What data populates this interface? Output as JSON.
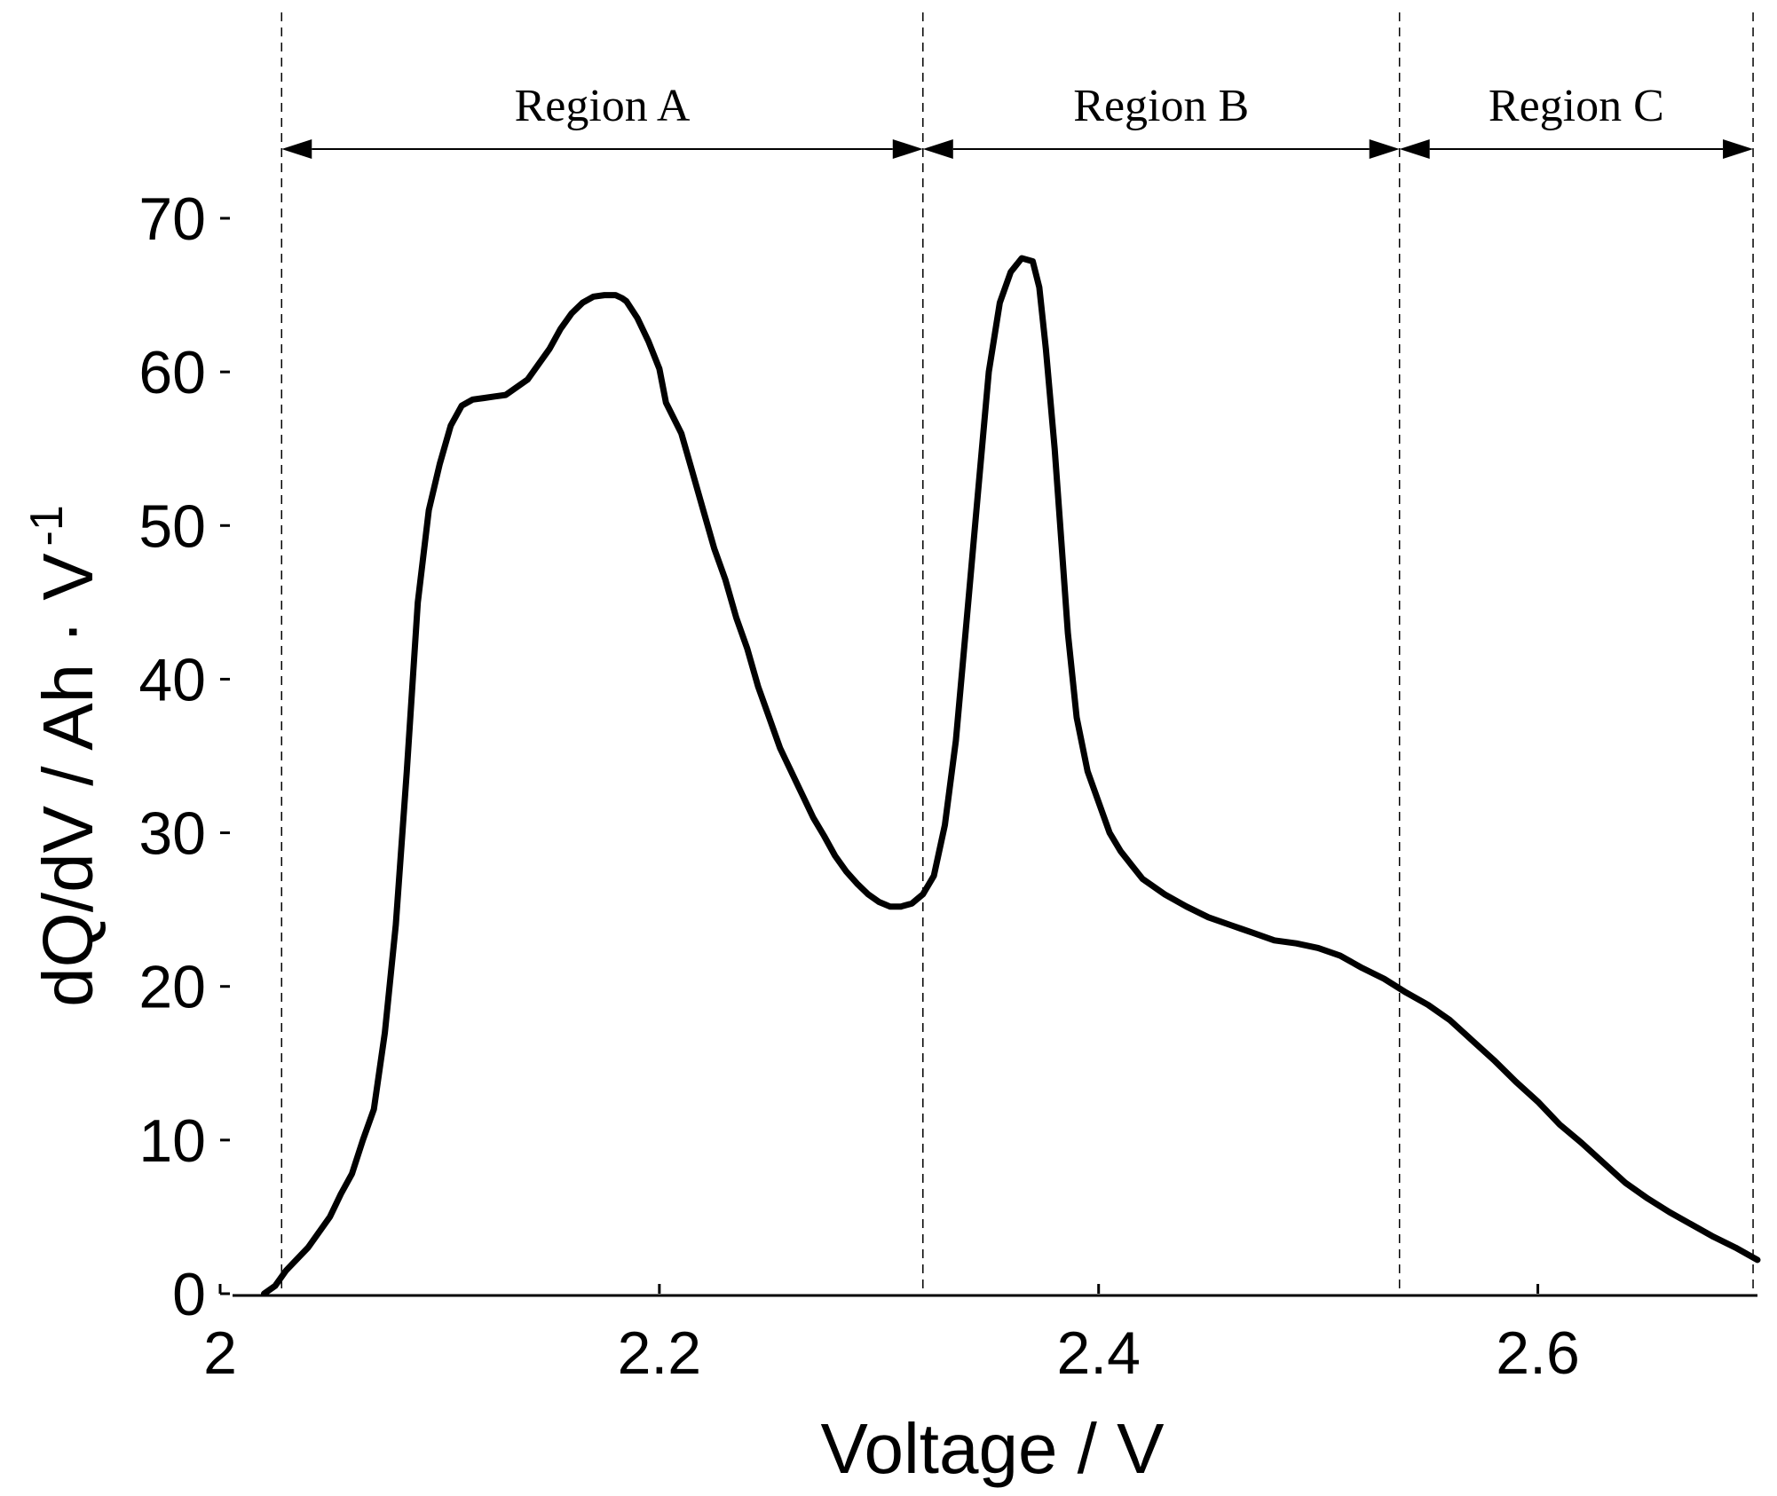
{
  "chart_data": {
    "type": "line",
    "title": "",
    "xlabel": "Voltage / V",
    "ylabel": "dQ/dV / Ah · V",
    "ylabel_superscript": "-1",
    "xlim": [
      2.0,
      2.7
    ],
    "ylim": [
      0,
      70
    ],
    "xticks": [
      {
        "value": 2.0,
        "label": "2"
      },
      {
        "value": 2.2,
        "label": "2.2"
      },
      {
        "value": 2.4,
        "label": "2.4"
      },
      {
        "value": 2.6,
        "label": "2.6"
      }
    ],
    "yticks": [
      {
        "value": 0,
        "label": "0"
      },
      {
        "value": 10,
        "label": "10"
      },
      {
        "value": 20,
        "label": "20"
      },
      {
        "value": 30,
        "label": "30"
      },
      {
        "value": 40,
        "label": "40"
      },
      {
        "value": 50,
        "label": "50"
      },
      {
        "value": 60,
        "label": "60"
      },
      {
        "value": 70,
        "label": "70"
      }
    ],
    "grid": false,
    "region_boundaries": [
      2.028,
      2.32,
      2.537,
      2.698
    ],
    "regions": [
      {
        "label": "Region A",
        "from": 2.028,
        "to": 2.32
      },
      {
        "label": "Region B",
        "from": 2.32,
        "to": 2.537
      },
      {
        "label": "Region C",
        "from": 2.537,
        "to": 2.698
      }
    ],
    "series": [
      {
        "color": "#000000",
        "x": [
          2.02,
          2.025,
          2.03,
          2.04,
          2.05,
          2.055,
          2.06,
          2.065,
          2.07,
          2.075,
          2.08,
          2.085,
          2.09,
          2.095,
          2.1,
          2.105,
          2.11,
          2.115,
          2.12,
          2.125,
          2.13,
          2.14,
          2.15,
          2.155,
          2.16,
          2.165,
          2.17,
          2.175,
          2.18,
          2.183,
          2.185,
          2.19,
          2.195,
          2.2,
          2.203,
          2.21,
          2.215,
          2.22,
          2.225,
          2.23,
          2.235,
          2.24,
          2.245,
          2.25,
          2.255,
          2.26,
          2.265,
          2.27,
          2.275,
          2.28,
          2.285,
          2.29,
          2.295,
          2.3,
          2.305,
          2.31,
          2.315,
          2.32,
          2.325,
          2.33,
          2.335,
          2.34,
          2.345,
          2.35,
          2.355,
          2.36,
          2.365,
          2.37,
          2.373,
          2.376,
          2.38,
          2.383,
          2.386,
          2.39,
          2.395,
          2.4,
          2.405,
          2.41,
          2.415,
          2.42,
          2.43,
          2.44,
          2.45,
          2.46,
          2.47,
          2.48,
          2.49,
          2.5,
          2.51,
          2.52,
          2.53,
          2.54,
          2.55,
          2.56,
          2.57,
          2.58,
          2.59,
          2.6,
          2.61,
          2.62,
          2.63,
          2.64,
          2.65,
          2.66,
          2.67,
          2.68,
          2.69,
          2.7
        ],
        "y": [
          0,
          0.5,
          1.5,
          3,
          5,
          6.5,
          7.8,
          10,
          12,
          17,
          24,
          34,
          45,
          51,
          54,
          56.5,
          57.8,
          58.2,
          58.3,
          58.4,
          58.5,
          59.5,
          61.5,
          62.8,
          63.8,
          64.5,
          64.9,
          65.0,
          65.0,
          64.8,
          64.6,
          63.5,
          62,
          60.2,
          58,
          56,
          53.5,
          51,
          48.5,
          46.5,
          44,
          42,
          39.5,
          37.5,
          35.5,
          34,
          32.5,
          31,
          29.8,
          28.5,
          27.5,
          26.7,
          26,
          25.5,
          25.2,
          25.2,
          25.4,
          26,
          27.2,
          30.5,
          36,
          44,
          52,
          60,
          64.5,
          66.5,
          67.4,
          67.2,
          65.5,
          61.5,
          55,
          49,
          43,
          37.5,
          34,
          32,
          30,
          28.8,
          27.9,
          27,
          26,
          25.2,
          24.5,
          24,
          23.5,
          23,
          22.8,
          22.5,
          22,
          21.2,
          20.5,
          19.6,
          18.8,
          17.8,
          16.5,
          15.2,
          13.8,
          12.5,
          11,
          9.8,
          8.5,
          7.2,
          6.2,
          5.3,
          4.5,
          3.7,
          3.0,
          2.2
        ]
      }
    ]
  }
}
